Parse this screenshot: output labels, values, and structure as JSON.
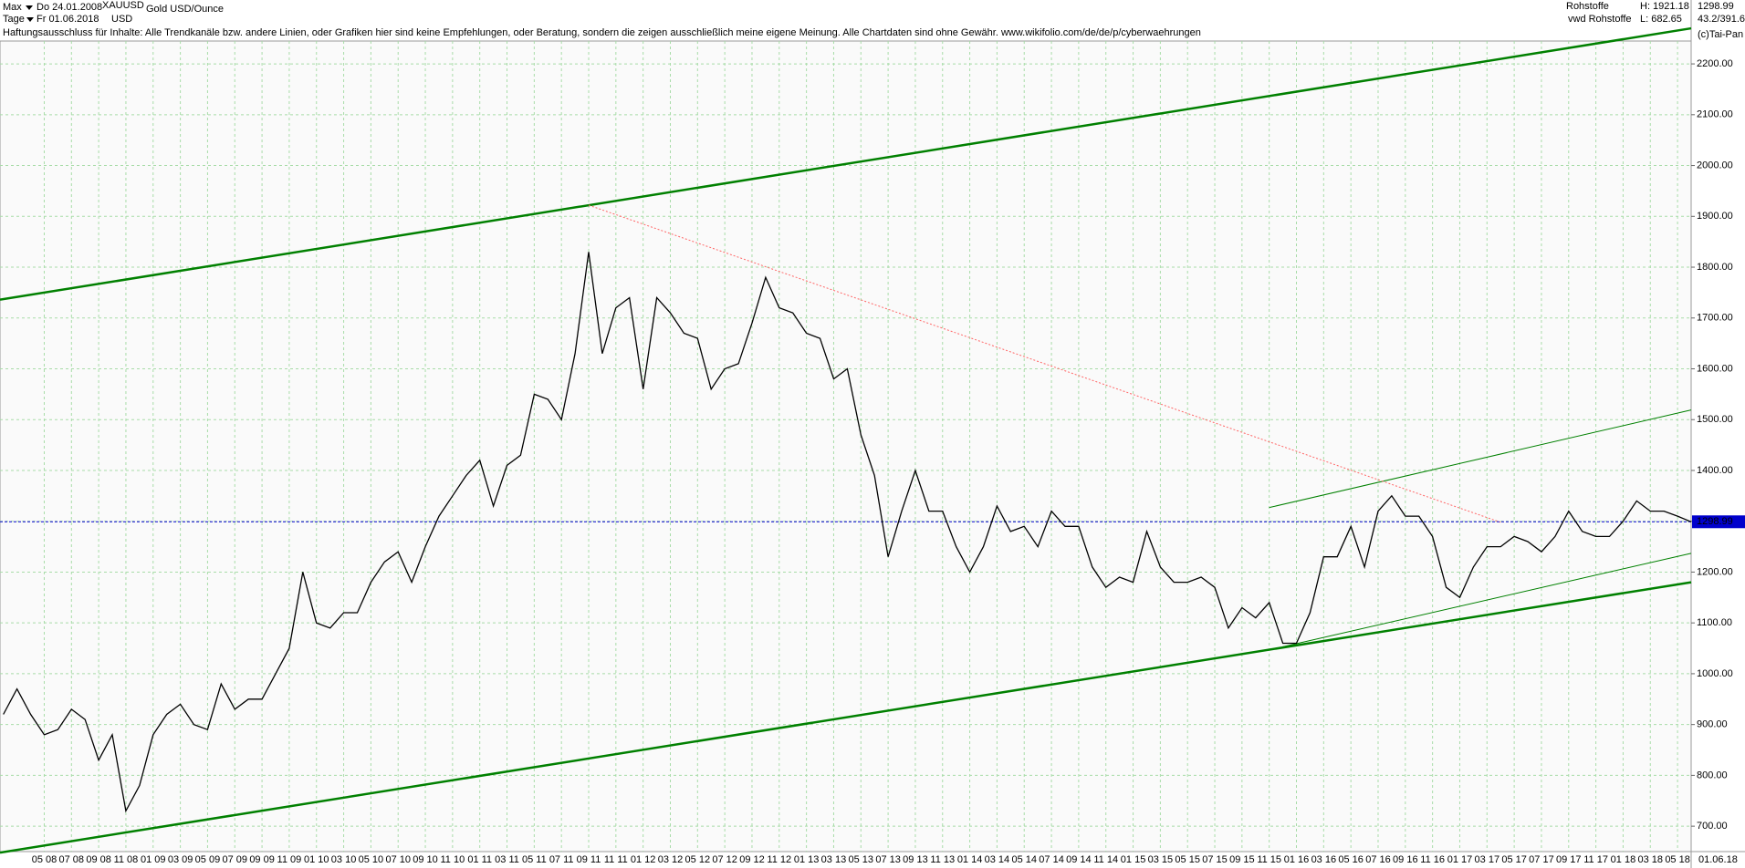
{
  "header": {
    "period": "Max",
    "start": "Do 24.01.2008",
    "symbol": "XAUUSD",
    "name": "Gold USD/Ounce",
    "interval": "Tage",
    "end": "Fr 01.06.2018",
    "currency": "USD",
    "group": "Rohstoffe",
    "high": "H: 1921.18",
    "source": "vwd Rohstoffe",
    "low": "L: 682.65",
    "last": "1298.99",
    "ratio": "43.2/391.6",
    "disclaimer": "Haftungsausschluss für Inhalte: Alle Trendkanäle bzw. andere Linien, oder Grafiken hier sind keine Empfehlungen, oder Beratung, sondern die zeigen ausschließlich meine eigene Meinung. Alle Chartdaten sind ohne Gewähr.  www.wikifolio.com/de/de/p/cyberwaehrungen",
    "copyright": "(c)Tai-Pan"
  },
  "chart_data": {
    "type": "line",
    "categories": [
      null,
      null,
      null,
      "05 08",
      null,
      "07 08",
      null,
      "09 08",
      null,
      "11 08",
      null,
      "01 09",
      null,
      "03 09",
      null,
      "05 09",
      null,
      "07 09",
      null,
      "09 09",
      null,
      "11 09",
      null,
      "01 10",
      null,
      "03 10",
      null,
      "05 10",
      null,
      "07 10",
      null,
      "09 10",
      null,
      "11 10",
      null,
      "01 11",
      null,
      "03 11",
      null,
      "05 11",
      null,
      "07 11",
      null,
      "09 11",
      null,
      "11 11",
      null,
      "01 12",
      null,
      "03 12",
      null,
      "05 12",
      null,
      "07 12",
      null,
      "09 12",
      null,
      "11 12",
      null,
      "01 13",
      null,
      "03 13",
      null,
      "05 13",
      null,
      "07 13",
      null,
      "09 13",
      null,
      "11 13",
      null,
      "01 14",
      null,
      "03 14",
      null,
      "05 14",
      null,
      "07 14",
      null,
      "09 14",
      null,
      "11 14",
      null,
      "01 15",
      null,
      "03 15",
      null,
      "05 15",
      null,
      "07 15",
      null,
      "09 15",
      null,
      "11 15",
      null,
      "01 16",
      null,
      "03 16",
      null,
      "05 16",
      null,
      "07 16",
      null,
      "09 16",
      null,
      "11 16",
      null,
      "01 17",
      null,
      "03 17",
      null,
      "05 17",
      null,
      "07 17",
      null,
      "09 17",
      null,
      "11 17",
      null,
      "01 18",
      null,
      "03 18",
      null,
      "05 18",
      "01.06.18"
    ],
    "series": [
      {
        "name": "XAUUSD",
        "color": "#000000",
        "values": [
          920,
          970,
          920,
          880,
          890,
          930,
          910,
          830,
          880,
          730,
          780,
          880,
          920,
          940,
          900,
          890,
          980,
          930,
          950,
          950,
          1000,
          1050,
          1200,
          1100,
          1090,
          1120,
          1120,
          1180,
          1220,
          1240,
          1180,
          1250,
          1310,
          1350,
          1390,
          1420,
          1330,
          1410,
          1430,
          1550,
          1540,
          1500,
          1630,
          1830,
          1630,
          1720,
          1740,
          1560,
          1740,
          1710,
          1670,
          1660,
          1560,
          1600,
          1610,
          1690,
          1780,
          1720,
          1710,
          1670,
          1660,
          1580,
          1600,
          1470,
          1390,
          1230,
          1320,
          1400,
          1320,
          1320,
          1250,
          1200,
          1250,
          1330,
          1280,
          1290,
          1250,
          1320,
          1290,
          1290,
          1210,
          1170,
          1190,
          1180,
          1280,
          1210,
          1180,
          1180,
          1190,
          1170,
          1090,
          1130,
          1110,
          1140,
          1060,
          1060,
          1120,
          1230,
          1230,
          1290,
          1210,
          1320,
          1350,
          1310,
          1310,
          1270,
          1170,
          1150,
          1210,
          1250,
          1250,
          1270,
          1260,
          1240,
          1270,
          1320,
          1280,
          1270,
          1270,
          1300,
          1340,
          1320,
          1320,
          1310,
          1299
        ]
      }
    ],
    "last_price": 1298.99,
    "last_color": "#0000cc",
    "trendlines": [
      {
        "color": "#008000",
        "width": 2.5,
        "dash": false,
        "x": [
          -0.25,
          124
        ],
        "y": [
          1736,
          2270
        ]
      },
      {
        "color": "#008000",
        "width": 2.5,
        "dash": false,
        "x": [
          -0.25,
          124
        ],
        "y": [
          648,
          1180
        ]
      },
      {
        "color": "#008000",
        "width": 1,
        "dash": false,
        "x": [
          94,
          124
        ],
        "y": [
          1053,
          1237
        ]
      },
      {
        "color": "#008000",
        "width": 1,
        "dash": false,
        "x": [
          93,
          124
        ],
        "y": [
          1327,
          1519
        ]
      },
      {
        "color": "#ff6666",
        "width": 1,
        "dash": true,
        "x": [
          43,
          110
        ],
        "y": [
          1922,
          1298
        ]
      }
    ],
    "ylim": [
      650,
      2245
    ],
    "yticks": [
      {
        "value": 700,
        "label": "700.00"
      },
      {
        "value": 800,
        "label": "800.00"
      },
      {
        "value": 900,
        "label": "900.00"
      },
      {
        "value": 1000,
        "label": "1000.00"
      },
      {
        "value": 1100,
        "label": "1100.00"
      },
      {
        "value": 1200,
        "label": "1200.00"
      },
      {
        "value": 1300,
        "label": "1300.00"
      },
      {
        "value": 1400,
        "label": "1400.00"
      },
      {
        "value": 1500,
        "label": "1500.00"
      },
      {
        "value": 1600,
        "label": "1600.00"
      },
      {
        "value": 1700,
        "label": "1700.00"
      },
      {
        "value": 1800,
        "label": "1800.00"
      },
      {
        "value": 1900,
        "label": "1900.00"
      },
      {
        "value": 2000,
        "label": "2000.00"
      },
      {
        "value": 2100,
        "label": "2100.00"
      },
      {
        "value": 2200,
        "label": "2200.00"
      }
    ],
    "grid": true,
    "grid_color": "#a8dca8"
  }
}
